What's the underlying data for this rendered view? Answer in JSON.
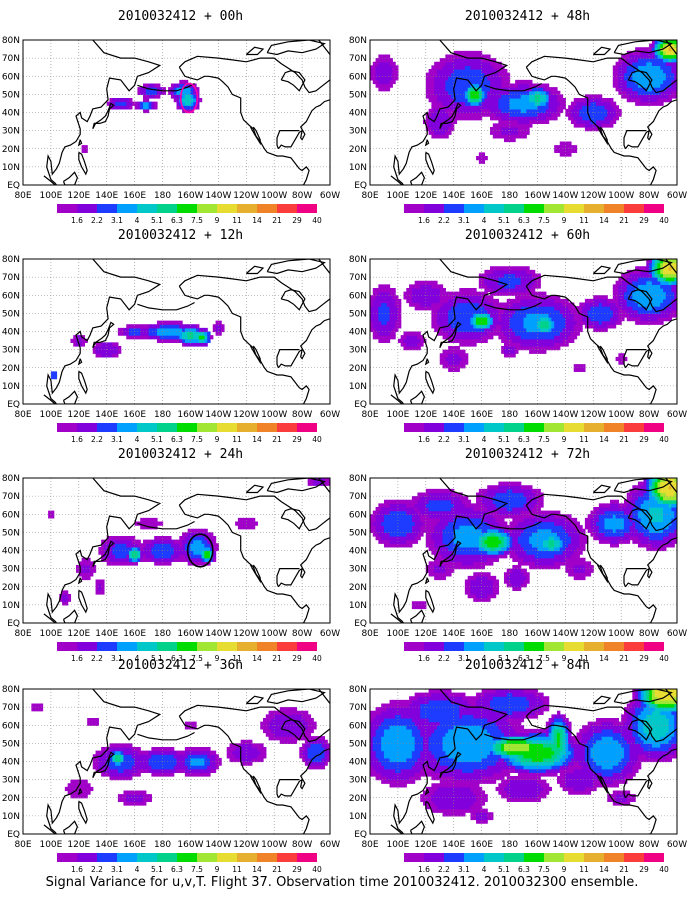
{
  "caption": "Signal Variance for u,v,T. Flight 37. Observation time 2010032412. 2010032300 ensemble.",
  "x_tick_labels": [
    "80E",
    "100E",
    "120E",
    "140E",
    "160E",
    "180",
    "160W",
    "140W",
    "120W",
    "100W",
    "80W",
    "60W"
  ],
  "y_tick_labels": [
    "EQ",
    "10N",
    "20N",
    "30N",
    "40N",
    "50N",
    "60N",
    "70N",
    "80N"
  ],
  "colorbar": {
    "labels": [
      "1.6",
      "2.2",
      "3.1",
      "4",
      "5.1",
      "6.3",
      "7.5",
      "9",
      "11",
      "14",
      "21",
      "29",
      "40"
    ],
    "colors": [
      "#a000c8",
      "#8200dc",
      "#1e3cff",
      "#00a0ff",
      "#00c8c8",
      "#00d28c",
      "#00dc00",
      "#a0e632",
      "#e6dc32",
      "#e6af2d",
      "#f08228",
      "#fa3c3c",
      "#f00082"
    ]
  },
  "coast_color": "#000000",
  "grid": true,
  "chart_data": [
    {
      "type": "heatmap",
      "title": "2010032412 + 00h",
      "xlim": [
        80,
        300
      ],
      "ylim": [
        0,
        80
      ],
      "blobs": [
        [
          150,
          45,
          12,
          4,
          3.5
        ],
        [
          168,
          44,
          8,
          3,
          5
        ],
        [
          172,
          52,
          10,
          4,
          4
        ],
        [
          195,
          52,
          10,
          5,
          5
        ],
        [
          198,
          47,
          8,
          6,
          6
        ],
        [
          162,
          32,
          3,
          2,
          2
        ],
        [
          92,
          31,
          2,
          2,
          2
        ],
        [
          124,
          20,
          3,
          3,
          2
        ],
        [
          93,
          26,
          2,
          2,
          2
        ]
      ],
      "annotations": [
        {
          "kind": "circle",
          "lon": 199,
          "lat": 48,
          "rx": 6,
          "ry": 8,
          "color": "#ff00aa"
        }
      ]
    },
    {
      "type": "heatmap",
      "title": "2010032412 + 12h",
      "xlim": [
        80,
        300
      ],
      "ylim": [
        0,
        80
      ],
      "blobs": [
        [
          185,
          40,
          22,
          5,
          5
        ],
        [
          200,
          38,
          10,
          5,
          7
        ],
        [
          208,
          37,
          6,
          4,
          8
        ],
        [
          160,
          40,
          14,
          4,
          3.5
        ],
        [
          140,
          30,
          14,
          6,
          3
        ],
        [
          120,
          35,
          8,
          6,
          2.5
        ],
        [
          102,
          16,
          3,
          3,
          4
        ],
        [
          220,
          42,
          6,
          4,
          3
        ]
      ]
    },
    {
      "type": "heatmap",
      "title": "2010032412 + 24h",
      "xlim": [
        80,
        300
      ],
      "ylim": [
        0,
        80
      ],
      "blobs": [
        [
          150,
          40,
          18,
          10,
          3.5
        ],
        [
          160,
          38,
          5,
          4,
          8
        ],
        [
          180,
          40,
          18,
          8,
          4
        ],
        [
          205,
          42,
          14,
          10,
          4.5
        ],
        [
          212,
          38,
          5,
          4,
          8.5
        ],
        [
          125,
          30,
          10,
          8,
          2.5
        ],
        [
          135,
          20,
          6,
          6,
          2.5
        ],
        [
          110,
          14,
          4,
          4,
          3
        ],
        [
          170,
          55,
          20,
          6,
          2
        ],
        [
          240,
          55,
          15,
          6,
          2
        ],
        [
          100,
          60,
          6,
          6,
          2
        ],
        [
          292,
          78,
          10,
          3,
          3
        ]
      ],
      "annotations": [
        {
          "kind": "circle",
          "lon": 207,
          "lat": 40,
          "rx": 9,
          "ry": 9,
          "color": "#000000"
        }
      ]
    },
    {
      "type": "heatmap",
      "title": "2010032412 + 36h",
      "xlim": [
        80,
        300
      ],
      "ylim": [
        0,
        80
      ],
      "blobs": [
        [
          150,
          40,
          22,
          10,
          4
        ],
        [
          148,
          42,
          5,
          4,
          8
        ],
        [
          180,
          40,
          22,
          8,
          4
        ],
        [
          205,
          40,
          16,
          8,
          4.5
        ],
        [
          240,
          45,
          18,
          8,
          3
        ],
        [
          270,
          60,
          25,
          12,
          3
        ],
        [
          290,
          45,
          12,
          10,
          4
        ],
        [
          120,
          25,
          20,
          10,
          2
        ],
        [
          160,
          20,
          18,
          6,
          2.5
        ],
        [
          130,
          62,
          10,
          6,
          2
        ],
        [
          200,
          60,
          10,
          5,
          2
        ],
        [
          90,
          70,
          10,
          6,
          2
        ]
      ]
    },
    {
      "type": "heatmap",
      "title": "2010032412 + 48h",
      "xlim": [
        80,
        300
      ],
      "ylim": [
        0,
        80
      ],
      "blobs": [
        [
          150,
          55,
          32,
          20,
          4
        ],
        [
          155,
          50,
          8,
          6,
          9
        ],
        [
          190,
          45,
          30,
          12,
          4.5
        ],
        [
          200,
          48,
          10,
          6,
          7
        ],
        [
          240,
          40,
          20,
          10,
          4
        ],
        [
          280,
          60,
          25,
          15,
          5
        ],
        [
          295,
          75,
          10,
          6,
          14
        ],
        [
          130,
          35,
          14,
          12,
          3
        ],
        [
          180,
          30,
          20,
          8,
          2.5
        ],
        [
          90,
          62,
          12,
          12,
          3
        ],
        [
          220,
          20,
          16,
          8,
          2
        ],
        [
          160,
          15,
          10,
          5,
          2
        ]
      ]
    },
    {
      "type": "heatmap",
      "title": "2010032412 + 60h",
      "xlim": [
        80,
        300
      ],
      "ylim": [
        0,
        80
      ],
      "blobs": [
        [
          150,
          48,
          28,
          16,
          4
        ],
        [
          160,
          46,
          8,
          5,
          9
        ],
        [
          200,
          45,
          32,
          16,
          4.5
        ],
        [
          205,
          44,
          10,
          6,
          7
        ],
        [
          245,
          50,
          18,
          10,
          4
        ],
        [
          280,
          60,
          25,
          15,
          5
        ],
        [
          295,
          75,
          12,
          8,
          14
        ],
        [
          90,
          50,
          14,
          18,
          3.5
        ],
        [
          120,
          60,
          20,
          10,
          3
        ],
        [
          180,
          68,
          26,
          10,
          3.5
        ],
        [
          140,
          25,
          16,
          10,
          2.5
        ],
        [
          230,
          20,
          10,
          6,
          2
        ],
        [
          180,
          30,
          10,
          6,
          2.5
        ],
        [
          110,
          35,
          14,
          8,
          2.5
        ],
        [
          260,
          25,
          10,
          5,
          2
        ]
      ]
    },
    {
      "type": "heatmap",
      "title": "2010032412 + 72h",
      "xlim": [
        80,
        300
      ],
      "ylim": [
        0,
        80
      ],
      "blobs": [
        [
          150,
          48,
          30,
          18,
          4.5
        ],
        [
          168,
          45,
          14,
          7,
          9
        ],
        [
          205,
          46,
          30,
          16,
          4.5
        ],
        [
          210,
          44,
          10,
          6,
          7
        ],
        [
          255,
          55,
          20,
          12,
          4.5
        ],
        [
          285,
          60,
          22,
          18,
          5.5
        ],
        [
          295,
          75,
          14,
          10,
          14
        ],
        [
          100,
          55,
          22,
          14,
          4
        ],
        [
          130,
          65,
          26,
          10,
          3.5
        ],
        [
          180,
          68,
          26,
          10,
          4
        ],
        [
          160,
          20,
          16,
          10,
          3
        ],
        [
          185,
          25,
          12,
          8,
          3
        ],
        [
          230,
          30,
          14,
          8,
          2.5
        ],
        [
          130,
          30,
          14,
          8,
          2.5
        ],
        [
          115,
          10,
          10,
          6,
          2
        ]
      ]
    },
    {
      "type": "heatmap",
      "title": "2010032412 + 84h",
      "xlim": [
        80,
        300
      ],
      "ylim": [
        0,
        80
      ],
      "blobs": [
        [
          150,
          50,
          40,
          22,
          5
        ],
        [
          185,
          48,
          20,
          6,
          11
        ],
        [
          200,
          45,
          26,
          10,
          9
        ],
        [
          215,
          52,
          8,
          12,
          8
        ],
        [
          250,
          45,
          24,
          18,
          5
        ],
        [
          285,
          60,
          22,
          18,
          6
        ],
        [
          292,
          78,
          16,
          10,
          14
        ],
        [
          100,
          50,
          26,
          22,
          5
        ],
        [
          130,
          68,
          30,
          12,
          4
        ],
        [
          180,
          72,
          30,
          10,
          4
        ],
        [
          140,
          20,
          30,
          12,
          3
        ],
        [
          190,
          25,
          24,
          10,
          3
        ],
        [
          230,
          30,
          20,
          10,
          3
        ],
        [
          260,
          20,
          14,
          6,
          2.5
        ],
        [
          160,
          10,
          14,
          5,
          2.5
        ]
      ]
    }
  ]
}
